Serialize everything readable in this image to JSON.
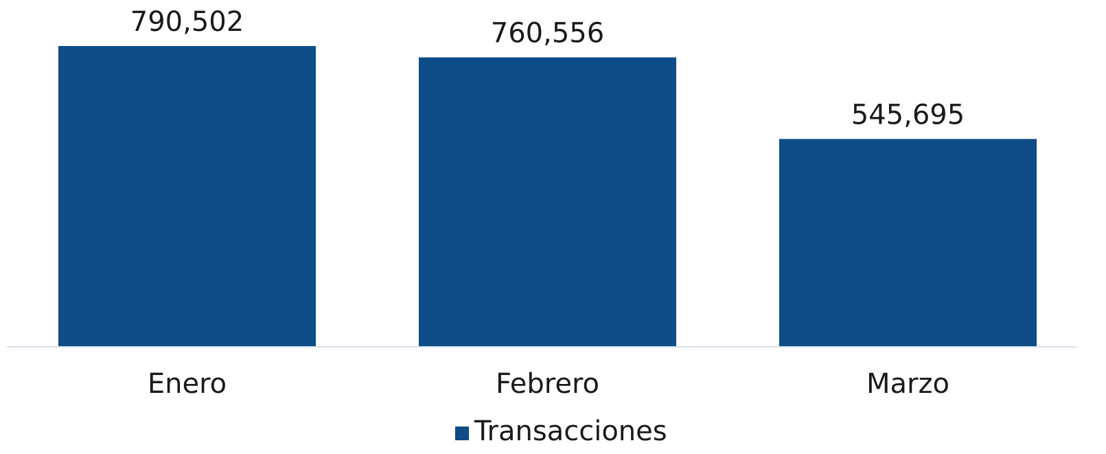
{
  "chart_data": {
    "type": "bar",
    "categories": [
      "Enero",
      "Febrero",
      "Marzo"
    ],
    "series": [
      {
        "name": "Transacciones",
        "color": "#0e4c87",
        "values": [
          790502,
          760556,
          545695
        ],
        "value_labels": [
          "790,502",
          "760,556",
          "545,695"
        ]
      }
    ]
  }
}
